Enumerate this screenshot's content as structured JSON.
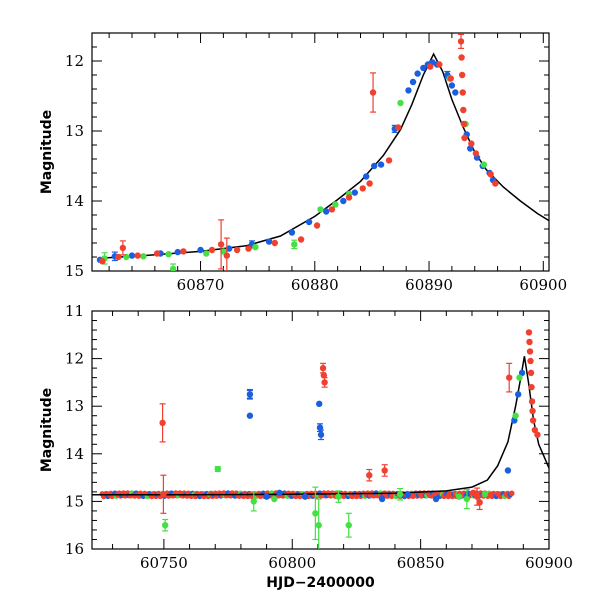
{
  "chart_data": [
    {
      "type": "scatter",
      "title": "",
      "xlabel": "",
      "ylabel": "Magnitude",
      "xlim": [
        60860.5,
        60900.5
      ],
      "ylim": [
        15.0,
        11.6
      ],
      "y_inverted": true,
      "x_ticks": [
        60870,
        60880,
        60890,
        60900
      ],
      "y_ticks": [
        12,
        13,
        14,
        15
      ],
      "colors": {
        "blue": "#1a5fe0",
        "green": "#44e044",
        "red": "#f04030",
        "model": "#000000"
      },
      "model_curve": [
        [
          60861,
          14.82
        ],
        [
          60865,
          14.78
        ],
        [
          60870,
          14.72
        ],
        [
          60874,
          14.64
        ],
        [
          60877,
          14.5
        ],
        [
          60880,
          14.22
        ],
        [
          60882,
          13.98
        ],
        [
          60884,
          13.72
        ],
        [
          60886,
          13.35
        ],
        [
          60887.5,
          12.98
        ],
        [
          60888.5,
          12.62
        ],
        [
          60889.5,
          12.2
        ],
        [
          60890.4,
          11.9
        ],
        [
          60891.2,
          12.15
        ],
        [
          60892,
          12.55
        ],
        [
          60893,
          12.95
        ],
        [
          60894,
          13.3
        ],
        [
          60895,
          13.55
        ],
        [
          60896.5,
          13.8
        ],
        [
          60898,
          14.0
        ],
        [
          60899.5,
          14.18
        ],
        [
          60900.5,
          14.28
        ]
      ],
      "series": [
        {
          "color": "blue",
          "points": [
            [
              60861.2,
              14.84
            ],
            [
              60862.5,
              14.79
            ],
            [
              60864,
              14.78
            ],
            [
              60866.5,
              14.75
            ],
            [
              60868,
              14.73
            ],
            [
              60870,
              14.7
            ],
            [
              60872.5,
              14.68
            ],
            [
              60874.5,
              14.62
            ],
            [
              60876,
              14.58
            ],
            [
              60878,
              14.45
            ],
            [
              60879.5,
              14.3
            ],
            [
              60881,
              14.15
            ],
            [
              60882.5,
              14.0
            ],
            [
              60883.5,
              13.88
            ],
            [
              60884.5,
              13.65
            ],
            [
              60885.2,
              13.5
            ],
            [
              60885.8,
              13.48
            ],
            [
              60887,
              12.97
            ],
            [
              60888.2,
              12.42
            ],
            [
              60888.6,
              12.3
            ],
            [
              60889,
              12.18
            ],
            [
              60889.5,
              12.1
            ],
            [
              60889.9,
              12.05
            ],
            [
              60890.3,
              12.02
            ],
            [
              60890.7,
              12.05
            ],
            [
              60891.6,
              12.2
            ],
            [
              60892,
              12.35
            ],
            [
              60892.3,
              12.45
            ],
            [
              60893.3,
              13.05
            ],
            [
              60893.6,
              13.25
            ],
            [
              60894.2,
              13.38
            ],
            [
              60894.7,
              13.5
            ],
            [
              60895.3,
              13.6
            ],
            [
              60895.6,
              13.7
            ]
          ],
          "err": [
            [
              60862.5,
              0.06
            ],
            [
              60874.5,
              0.05
            ],
            [
              60887,
              0.05
            ],
            [
              60891.6,
              0.05
            ]
          ]
        },
        {
          "color": "green",
          "points": [
            [
              60861.6,
              14.82
            ],
            [
              60863.5,
              14.8
            ],
            [
              60865,
              14.79
            ],
            [
              60867.2,
              14.76
            ],
            [
              60867.6,
              14.97
            ],
            [
              60870.5,
              14.75
            ],
            [
              60872,
              14.72
            ],
            [
              60874.8,
              14.66
            ],
            [
              60878.2,
              14.62
            ],
            [
              60880.5,
              14.12
            ],
            [
              60881.8,
              14.05
            ],
            [
              60883,
              13.9
            ],
            [
              60887.5,
              12.6
            ],
            [
              60891.8,
              12.25
            ],
            [
              60893.2,
              12.9
            ],
            [
              60894.8,
              13.48
            ]
          ],
          "err": [
            [
              60861.6,
              0.08
            ],
            [
              60867.6,
              0.07
            ],
            [
              60878.2,
              0.06
            ]
          ]
        },
        {
          "color": "red",
          "points": [
            [
              60861.4,
              14.86
            ],
            [
              60862.8,
              14.8
            ],
            [
              60863.2,
              14.67
            ],
            [
              60864.5,
              14.78
            ],
            [
              60866.2,
              14.75
            ],
            [
              60868.5,
              14.72
            ],
            [
              60871,
              14.7
            ],
            [
              60871.8,
              14.62
            ],
            [
              60872.3,
              14.78
            ],
            [
              60873.2,
              14.7
            ],
            [
              60874.2,
              14.68
            ],
            [
              60876.5,
              14.6
            ],
            [
              60878.8,
              14.55
            ],
            [
              60880.2,
              14.35
            ],
            [
              60881.5,
              14.12
            ],
            [
              60883,
              13.95
            ],
            [
              60884.2,
              13.82
            ],
            [
              60884.8,
              13.75
            ],
            [
              60885.1,
              12.45
            ],
            [
              60886.5,
              13.42
            ],
            [
              60887.3,
              12.95
            ],
            [
              60890.1,
              12.08
            ],
            [
              60890.9,
              12.05
            ],
            [
              60891.9,
              12.25
            ],
            [
              60892.8,
              11.72
            ],
            [
              60892.85,
              11.95
            ],
            [
              60892.9,
              12.2
            ],
            [
              60892.95,
              12.45
            ],
            [
              60893,
              12.7
            ],
            [
              60893.05,
              12.9
            ],
            [
              60893.1,
              13.1
            ],
            [
              60893.7,
              13.18
            ],
            [
              60894.1,
              13.32
            ],
            [
              60895.4,
              13.62
            ],
            [
              60895.8,
              13.75
            ]
          ],
          "err": [
            [
              60863.2,
              0.1
            ],
            [
              60871.8,
              0.35
            ],
            [
              60872.3,
              0.25
            ],
            [
              60885.1,
              0.28
            ],
            [
              60892.8,
              0.1
            ]
          ]
        }
      ]
    },
    {
      "type": "scatter",
      "title": "",
      "xlabel": "HJD−2400000",
      "ylabel": "Magnitude",
      "xlim": [
        60722,
        60900
      ],
      "ylim": [
        16.0,
        11.0
      ],
      "y_inverted": true,
      "x_ticks": [
        60750,
        60800,
        60850,
        60900
      ],
      "y_ticks": [
        11,
        12,
        13,
        14,
        15,
        16
      ],
      "colors": {
        "blue": "#1a5fe0",
        "green": "#44e044",
        "red": "#f04030",
        "model": "#000000"
      },
      "model_curve": [
        [
          60722,
          14.86
        ],
        [
          60760,
          14.86
        ],
        [
          60800,
          14.85
        ],
        [
          60840,
          14.83
        ],
        [
          60860,
          14.78
        ],
        [
          60870,
          14.7
        ],
        [
          60876,
          14.55
        ],
        [
          60880,
          14.25
        ],
        [
          60884,
          13.75
        ],
        [
          60887,
          13.0
        ],
        [
          60889,
          12.4
        ],
        [
          60890.4,
          11.95
        ],
        [
          60892,
          12.5
        ],
        [
          60894,
          13.3
        ],
        [
          60896,
          13.8
        ],
        [
          60898,
          14.05
        ],
        [
          60900,
          14.3
        ]
      ],
      "baseline": {
        "x_start": 60726,
        "x_end": 60886,
        "mag": 14.86
      },
      "series": [
        {
          "color": "blue",
          "points": [
            [
              60783.5,
              12.75
            ],
            [
              60783.5,
              13.2
            ],
            [
              60810.5,
              12.95
            ],
            [
              60810.8,
              13.45
            ],
            [
              60811.2,
              13.6
            ],
            [
              60790,
              14.9
            ],
            [
              60795,
              14.82
            ],
            [
              60805,
              14.9
            ],
            [
              60835,
              14.95
            ],
            [
              60845,
              14.86
            ],
            [
              60856,
              14.95
            ],
            [
              60868,
              14.88
            ],
            [
              60884,
              14.35
            ],
            [
              60886.5,
              13.3
            ],
            [
              60888,
              12.75
            ],
            [
              60889.5,
              12.3
            ]
          ],
          "err": [
            [
              60783.5,
              0.08
            ],
            [
              60783.5,
              0.1
            ],
            [
              60810.8,
              0.08
            ],
            [
              60811.2,
              0.1
            ]
          ]
        },
        {
          "color": "green",
          "points": [
            [
              60750.5,
              15.5
            ],
            [
              60771,
              14.32
            ],
            [
              60785,
              15.0
            ],
            [
              60793,
              14.95
            ],
            [
              60809,
              15.25
            ],
            [
              60810.3,
              15.5
            ],
            [
              60818,
              14.9
            ],
            [
              60822,
              15.5
            ],
            [
              60842,
              14.85
            ],
            [
              60865,
              14.9
            ],
            [
              60868,
              14.95
            ],
            [
              60875,
              14.85
            ],
            [
              60887,
              13.2
            ],
            [
              60888.5,
              12.4
            ]
          ],
          "err": [
            [
              60750.5,
              0.12
            ],
            [
              60771,
              0.05
            ],
            [
              60785,
              0.2
            ],
            [
              60809,
              0.55
            ],
            [
              60810.3,
              0.55
            ],
            [
              60818,
              0.12
            ],
            [
              60822,
              0.25
            ],
            [
              60842,
              0.12
            ],
            [
              60868,
              0.2
            ]
          ]
        },
        {
          "color": "red",
          "points": [
            [
              60749.5,
              13.35
            ],
            [
              60749.8,
              14.85
            ],
            [
              60812,
              12.2
            ],
            [
              60812.3,
              12.35
            ],
            [
              60812.6,
              12.5
            ],
            [
              60830,
              14.45
            ],
            [
              60836,
              14.35
            ],
            [
              60870.5,
              14.82
            ],
            [
              60872,
              14.9
            ],
            [
              60873,
              15.02
            ],
            [
              60884.5,
              12.4
            ],
            [
              60892.2,
              11.45
            ],
            [
              60892.4,
              11.65
            ],
            [
              60892.6,
              11.85
            ],
            [
              60892.8,
              12.05
            ],
            [
              60893,
              12.3
            ],
            [
              60893.2,
              12.6
            ],
            [
              60893.4,
              12.9
            ],
            [
              60893.6,
              13.1
            ],
            [
              60893.8,
              13.3
            ],
            [
              60894.5,
              13.5
            ],
            [
              60895.5,
              13.6
            ]
          ],
          "err": [
            [
              60749.5,
              0.4
            ],
            [
              60749.8,
              0.4
            ],
            [
              60812,
              0.1
            ],
            [
              60812.6,
              0.1
            ],
            [
              60830,
              0.12
            ],
            [
              60836,
              0.12
            ],
            [
              60872,
              0.18
            ],
            [
              60873,
              0.15
            ],
            [
              60884.5,
              0.3
            ]
          ]
        }
      ]
    }
  ]
}
